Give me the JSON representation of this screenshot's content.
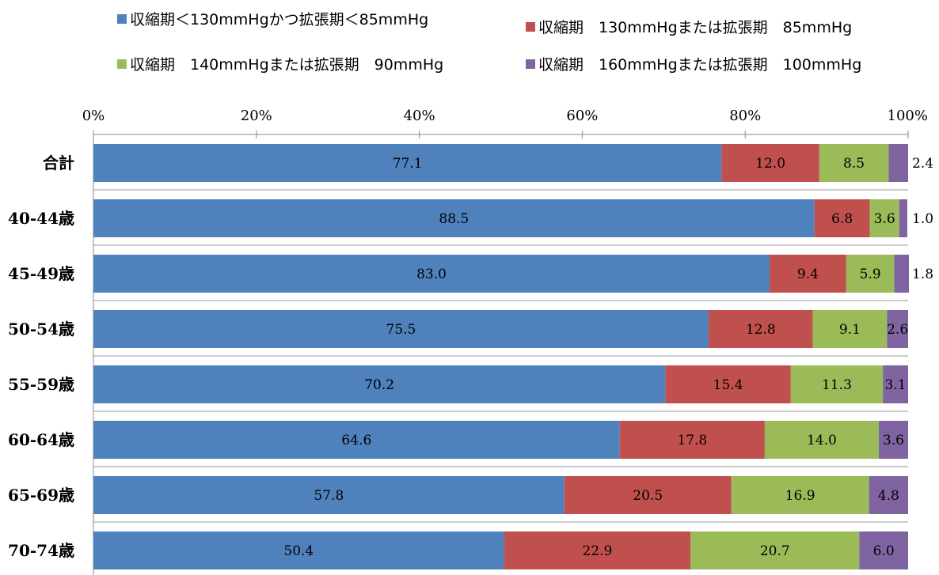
{
  "chart_data": {
    "type": "bar",
    "orientation": "horizontal",
    "stacked": true,
    "percent_stacked": true,
    "categories": [
      "合計",
      "40-44歳",
      "45-49歳",
      "50-54歳",
      "55-59歳",
      "60-64歳",
      "65-69歳",
      "70-74歳"
    ],
    "series": [
      {
        "name": "収縮期＜130mmHgかつ拡張期＜85mmHg",
        "color": "#4f81bd",
        "values": [
          77.1,
          88.5,
          83.0,
          75.5,
          70.2,
          64.6,
          57.8,
          50.4
        ]
      },
      {
        "name": "収縮期　130mmHgまたは拡張期　85mmHg",
        "color": "#c0504d",
        "values": [
          12.0,
          6.8,
          9.4,
          12.8,
          15.4,
          17.8,
          20.5,
          22.9
        ]
      },
      {
        "name": "収縮期　140mmHgまたは拡張期　90mmHg",
        "color": "#9bbb59",
        "values": [
          8.5,
          3.6,
          5.9,
          9.1,
          11.3,
          14.0,
          16.9,
          20.7
        ]
      },
      {
        "name": "収縮期　160mmHgまたは拡張期　100mmHg",
        "color": "#8064a2",
        "values": [
          2.4,
          1.0,
          1.8,
          2.6,
          3.1,
          3.6,
          4.8,
          6.0
        ]
      }
    ],
    "xlim": [
      0,
      100
    ],
    "x_ticks": [
      "0%",
      "20%",
      "40%",
      "60%",
      "80%",
      "100%"
    ],
    "grid": false,
    "legend_position": "top"
  }
}
